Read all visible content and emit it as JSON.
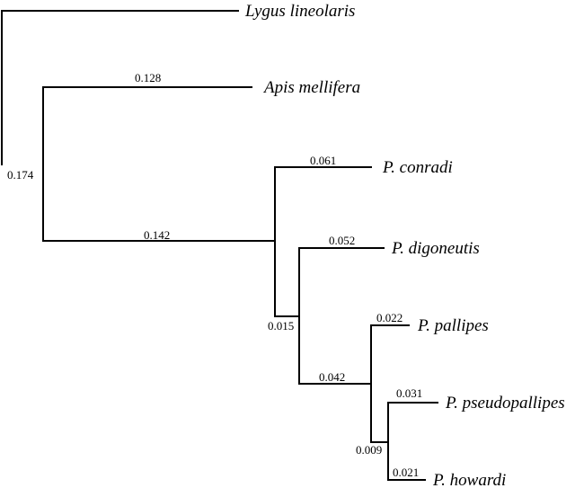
{
  "tree": {
    "taxa": {
      "lygus": "Lygus lineolaris",
      "apis": "Apis mellifera",
      "conradi": "P. conradi",
      "digoneutis": "P. digoneutis",
      "pallipes": "P. pallipes",
      "pseudopallipes": "P. pseudopallipes",
      "howardi": "P. howardi"
    },
    "branch_lengths": {
      "root": "0.174",
      "apis": "0.128",
      "peristenus_clade": "0.142",
      "conradi": "0.061",
      "inner_clade": "0.015",
      "digoneutis": "0.052",
      "pallipes_group": "0.042",
      "pallipes": "0.022",
      "pseudo_howardi": "0.009",
      "pseudopallipes": "0.031",
      "howardi": "0.021"
    }
  }
}
